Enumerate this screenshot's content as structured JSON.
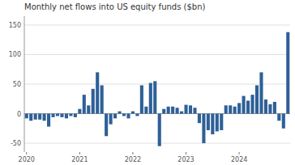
{
  "chart_data": {
    "type": "bar",
    "title": "Monthly net flows into US equity funds ($bn)",
    "categories": [
      "2020",
      null,
      null,
      null,
      null,
      null,
      null,
      null,
      null,
      null,
      null,
      null,
      "2021",
      null,
      null,
      null,
      null,
      null,
      null,
      null,
      null,
      null,
      null,
      null,
      "2022",
      null,
      null,
      null,
      null,
      null,
      null,
      null,
      null,
      null,
      null,
      null,
      "2023",
      null,
      null,
      null,
      null,
      null,
      null,
      null,
      null,
      null,
      null,
      null,
      "2024",
      null,
      null,
      null,
      null,
      null,
      null,
      null,
      null,
      null,
      null,
      null
    ],
    "values": [
      -8,
      -12,
      -10,
      -10,
      -12,
      -22,
      -6,
      -4,
      -6,
      -8,
      -4,
      -6,
      8,
      32,
      14,
      42,
      70,
      48,
      -38,
      -18,
      -8,
      4,
      -4,
      -8,
      4,
      -4,
      48,
      12,
      52,
      55,
      -55,
      8,
      12,
      12,
      10,
      4,
      15,
      14,
      10,
      -16,
      -50,
      -28,
      -35,
      -30,
      -28,
      14,
      14,
      12,
      18,
      30,
      22,
      32,
      48,
      70,
      24,
      16,
      20,
      -12,
      -25,
      138
    ],
    "color": "#2e6097",
    "ylim": [
      -65,
      165
    ],
    "yticks": [
      -50,
      0,
      50,
      100,
      150
    ],
    "grid": true
  }
}
